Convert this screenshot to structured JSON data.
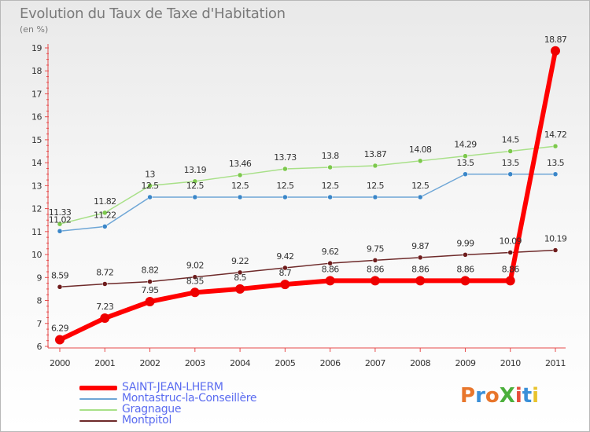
{
  "title": "Evolution du Taux de Taxe d'Habitation",
  "subtitle": "(en %)",
  "logo": {
    "text": "ProXiti",
    "colors": [
      "#e8762c",
      "#3a8fd8",
      "#e8762c",
      "#4caf3c",
      "#e84c3c",
      "#3a8fd8",
      "#e8c32c"
    ]
  },
  "chart_data": {
    "type": "line",
    "x": [
      2000,
      2001,
      2002,
      2003,
      2004,
      2005,
      2006,
      2007,
      2008,
      2009,
      2010,
      2011
    ],
    "ylim": [
      6,
      19
    ],
    "y_ticks": [
      6,
      7,
      8,
      9,
      10,
      11,
      12,
      13,
      14,
      15,
      16,
      17,
      18,
      19
    ],
    "grid": false,
    "legend_position": "bottom-left",
    "series": [
      {
        "name": "Montpitol",
        "color": "#6e2a2a",
        "point_color": "#6e1c1c",
        "width": 1.5,
        "radius": 3,
        "values": [
          8.59,
          8.72,
          8.82,
          9.02,
          9.22,
          9.42,
          9.62,
          9.75,
          9.87,
          9.99,
          10.09,
          10.19
        ]
      },
      {
        "name": "Montastruc-la-Conseillère",
        "color": "#6ea6d6",
        "point_color": "#3a86c8",
        "width": 1.5,
        "radius": 3,
        "values": [
          11.02,
          11.22,
          12.5,
          12.5,
          12.5,
          12.5,
          12.5,
          12.5,
          12.5,
          13.5,
          13.5,
          13.5
        ]
      },
      {
        "name": "Gragnague",
        "color": "#a8e088",
        "point_color": "#7cc84c",
        "width": 1.5,
        "radius": 3,
        "values": [
          11.33,
          11.82,
          13,
          13.19,
          13.46,
          13.73,
          13.8,
          13.87,
          14.08,
          14.29,
          14.5,
          14.72
        ]
      },
      {
        "name": "SAINT-JEAN-LHERM",
        "color": "#ff0000",
        "point_color": "#ee0000",
        "width": 6,
        "radius": 6,
        "values": [
          6.29,
          7.23,
          7.95,
          8.35,
          8.5,
          8.7,
          8.86,
          8.86,
          8.86,
          8.86,
          8.86,
          18.87
        ]
      }
    ],
    "data_labels": [
      {
        "series": "SAINT-JEAN-LHERM",
        "labels": [
          "6.29",
          "7.23",
          "7.95",
          "8.35",
          "8.5",
          "8.7",
          "8.86",
          "8.86",
          "8.86",
          "8.86",
          "8.86",
          "18.87"
        ]
      },
      {
        "series": "Montastruc-la-Conseillère",
        "labels": [
          "11.02",
          "11.22",
          "12.5",
          "12.5",
          "12.5",
          "12.5",
          "12.5",
          "12.5",
          "12.5",
          "13.5",
          "13.5",
          "13.5"
        ]
      },
      {
        "series": "Gragnague",
        "labels": [
          "11.33",
          "11.82",
          "13",
          "13.19",
          "13.46",
          "13.73",
          "13.8",
          "13.87",
          "14.08",
          "14.29",
          "14.5",
          "14.72"
        ]
      },
      {
        "series": "Montpitol",
        "labels": [
          "8.59",
          "8.72",
          "8.82",
          "9.02",
          "9.22",
          "9.42",
          "9.62",
          "9.75",
          "9.87",
          "9.99",
          "10.09",
          "10.19"
        ]
      }
    ]
  },
  "legend": [
    {
      "label": "SAINT-JEAN-LHERM",
      "color": "#ff0000",
      "thickness": 6
    },
    {
      "label": "Montastruc-la-Conseillère",
      "color": "#6ea6d6",
      "thickness": 2
    },
    {
      "label": "Gragnague",
      "color": "#a8e088",
      "thickness": 2
    },
    {
      "label": "Montpitol",
      "color": "#6e2a2a",
      "thickness": 2
    }
  ]
}
